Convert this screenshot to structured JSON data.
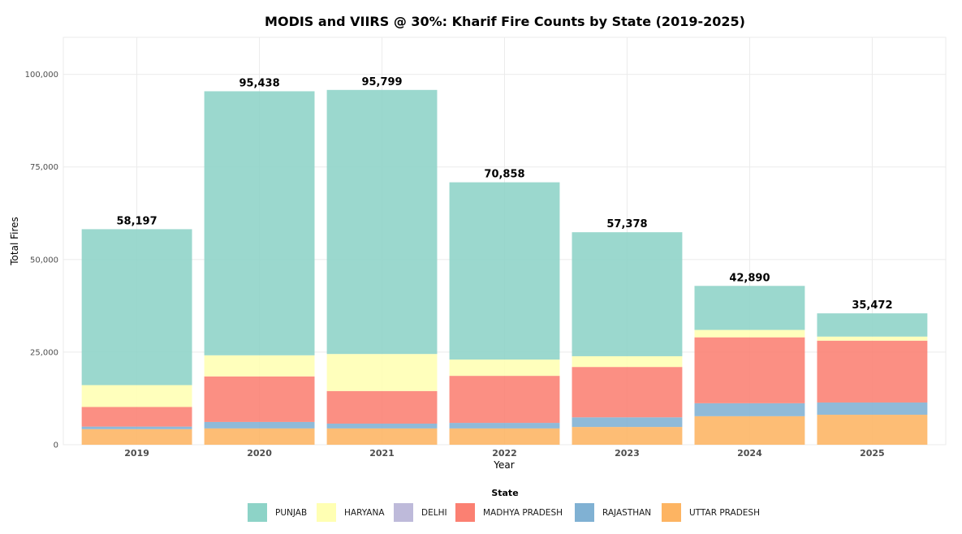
{
  "chart_data": {
    "type": "bar",
    "stacked": true,
    "title": "MODIS and VIIRS @ 30%: Kharif Fire Counts by State (2019-2025)",
    "xlabel": "Year",
    "ylabel": "Total Fires",
    "ylim": [
      0,
      110000
    ],
    "yticks": [
      0,
      25000,
      50000,
      75000,
      100000
    ],
    "ytick_labels": [
      "0",
      "25,000",
      "50,000",
      "75,000",
      "100,000"
    ],
    "grid": true,
    "categories": [
      "2019",
      "2020",
      "2021",
      "2022",
      "2023",
      "2024",
      "2025"
    ],
    "totals": [
      58197,
      95438,
      95799,
      70858,
      57378,
      42890,
      35472
    ],
    "total_labels": [
      "58,197",
      "95,438",
      "95,799",
      "70,858",
      "57,378",
      "42,890",
      "35,472"
    ],
    "legend_title": "State",
    "legend_position": "bottom",
    "series": [
      {
        "name": "PUNJAB",
        "color": "#8dd3c7",
        "values": [
          42097,
          71288,
          71299,
          47858,
          33478,
          11890,
          6272
        ]
      },
      {
        "name": "HARYANA",
        "color": "#ffffb3",
        "values": [
          5900,
          5700,
          10000,
          4400,
          2900,
          2000,
          1100
        ]
      },
      {
        "name": "DELHI",
        "color": "#bebada",
        "values": [
          0,
          0,
          0,
          0,
          0,
          0,
          0
        ]
      },
      {
        "name": "MADHYA PRADESH",
        "color": "#fb8072",
        "values": [
          5300,
          12300,
          8800,
          12700,
          13600,
          17800,
          16700
        ]
      },
      {
        "name": "RAJASTHAN",
        "color": "#80b1d3",
        "values": [
          700,
          1750,
          1300,
          1500,
          2600,
          3500,
          3300
        ]
      },
      {
        "name": "UTTAR PRADESH",
        "color": "#fdb462",
        "values": [
          4200,
          4400,
          4400,
          4400,
          4800,
          7700,
          8100
        ]
      }
    ]
  }
}
